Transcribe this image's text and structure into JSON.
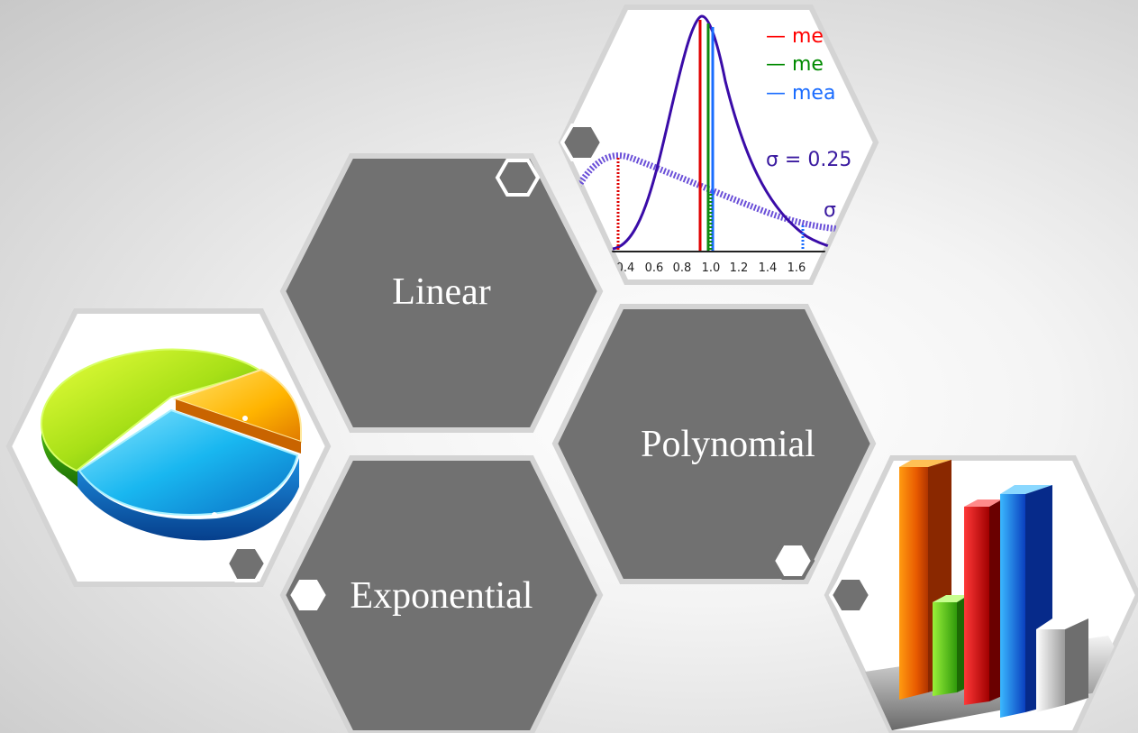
{
  "labels": {
    "linear": "Linear",
    "polynomial": "Polynomial",
    "exponential": "Exponential"
  },
  "distribution_chart": {
    "legend": [
      "— me",
      "— me",
      "— mea"
    ],
    "sigma_main": "σ = 0.25",
    "sigma_second": "σ",
    "x_ticks": [
      "0.4",
      "0.6",
      "0.8",
      "1.0",
      "1.2",
      "1.4",
      "1.6"
    ]
  },
  "colors": {
    "hex_fill": "#717171",
    "hex_border": "#d4d4d4",
    "legend_red": "#ff0000",
    "legend_green": "#008a00",
    "legend_blue": "#1a6cff",
    "curve": "#3a0ca8"
  },
  "icons": {
    "pie": "pie-chart-3d-icon",
    "bars": "bar-chart-3d-icon"
  }
}
